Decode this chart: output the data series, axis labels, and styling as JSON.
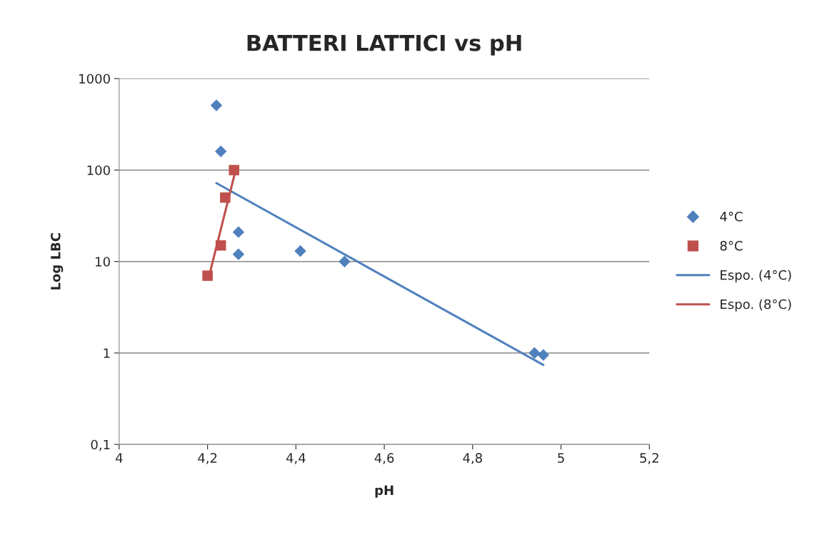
{
  "chart_data": {
    "type": "scatter",
    "title": "BATTERI LATTICI vs pH",
    "xlabel": "pH",
    "ylabel": "Log LBC",
    "log": "y",
    "grid": "y",
    "legend": "right",
    "xlim": [
      4,
      5.2
    ],
    "xticks": [
      4,
      {
        "value": 4.2,
        "label": "4,2"
      },
      {
        "value": 4.4,
        "label": "4,4"
      },
      {
        "value": 4.6,
        "label": "4,6"
      },
      {
        "value": 4.8,
        "label": "4,8"
      },
      5,
      {
        "value": 5.2,
        "label": "5,2"
      }
    ],
    "ylim": [
      0.1,
      1000
    ],
    "yticks": [
      {
        "value": 0.1,
        "label": "0,1"
      },
      1,
      10,
      100,
      1000
    ],
    "series": [
      {
        "name": "4°C",
        "marker": "diamond",
        "color": "#4f81bd",
        "x": [
          4.22,
          4.23,
          4.27,
          4.27,
          4.41,
          4.51,
          4.94,
          4.96
        ],
        "values": [
          510,
          160,
          21,
          12,
          13,
          10,
          1,
          0.95
        ]
      },
      {
        "name": "8°C",
        "marker": "square",
        "color": "#c0504d",
        "x": [
          4.2,
          4.23,
          4.24,
          4.26
        ],
        "values": [
          7,
          15,
          50,
          100
        ]
      },
      {
        "name": "Espo. (4°C)",
        "type": "line",
        "marker": "none",
        "line_style": "solid",
        "color": "#4f81bd",
        "x": [
          4.22,
          4.96
        ],
        "values": [
          72,
          0.74
        ]
      },
      {
        "name": "Espo. (8°C)",
        "type": "line",
        "marker": "none",
        "line_style": "solid",
        "color": "#c0504d",
        "x": [
          4.205,
          4.262
        ],
        "values": [
          7.4,
          93
        ]
      }
    ]
  }
}
